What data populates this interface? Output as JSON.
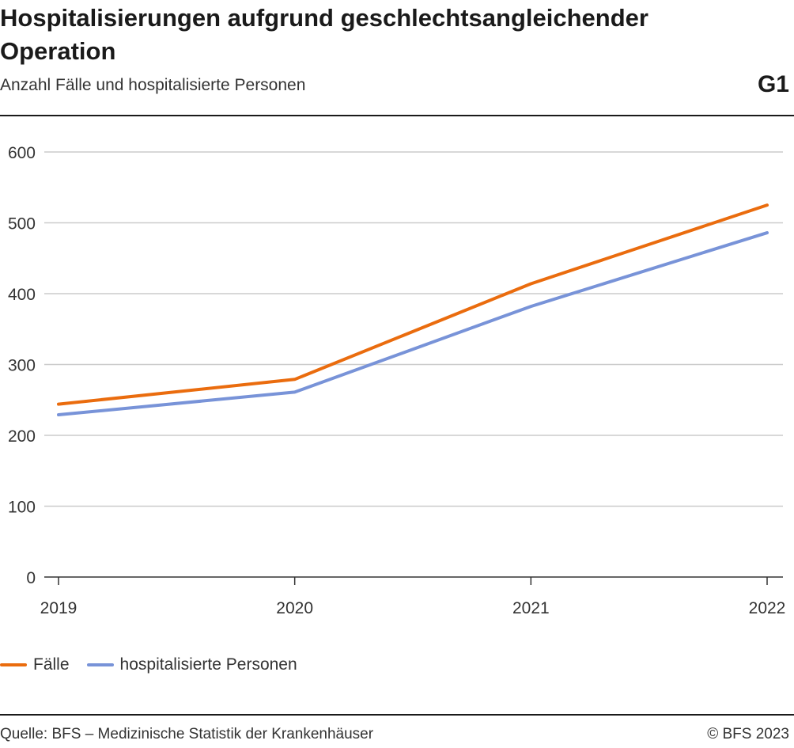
{
  "header": {
    "title": "Hospitalisierungen aufgrund geschlechtsangleichender Operation",
    "subtitle": "Anzahl Fälle und hospitalisierte Personen",
    "figure_id": "G1"
  },
  "footer": {
    "source": "Quelle: BFS – Medizinische Statistik der Krankenhäuser",
    "copyright": "© BFS 2023"
  },
  "chart_data": {
    "type": "line",
    "title": "Hospitalisierungen aufgrund geschlechtsangleichender Operation",
    "subtitle": "Anzahl Fälle und hospitalisierte Personen",
    "x": [
      "2019",
      "2020",
      "2021",
      "2022"
    ],
    "ylim": [
      0,
      600
    ],
    "yticks": [
      0,
      100,
      200,
      300,
      400,
      500,
      600
    ],
    "grid": true,
    "legend_position": "bottom-left",
    "series": [
      {
        "name": "Fälle",
        "color": "#ea6c0e",
        "values": [
          244,
          279,
          414,
          525
        ]
      },
      {
        "name": "hospitalisierte Personen",
        "color": "#7893d8",
        "values": [
          229,
          261,
          382,
          486
        ]
      }
    ]
  }
}
